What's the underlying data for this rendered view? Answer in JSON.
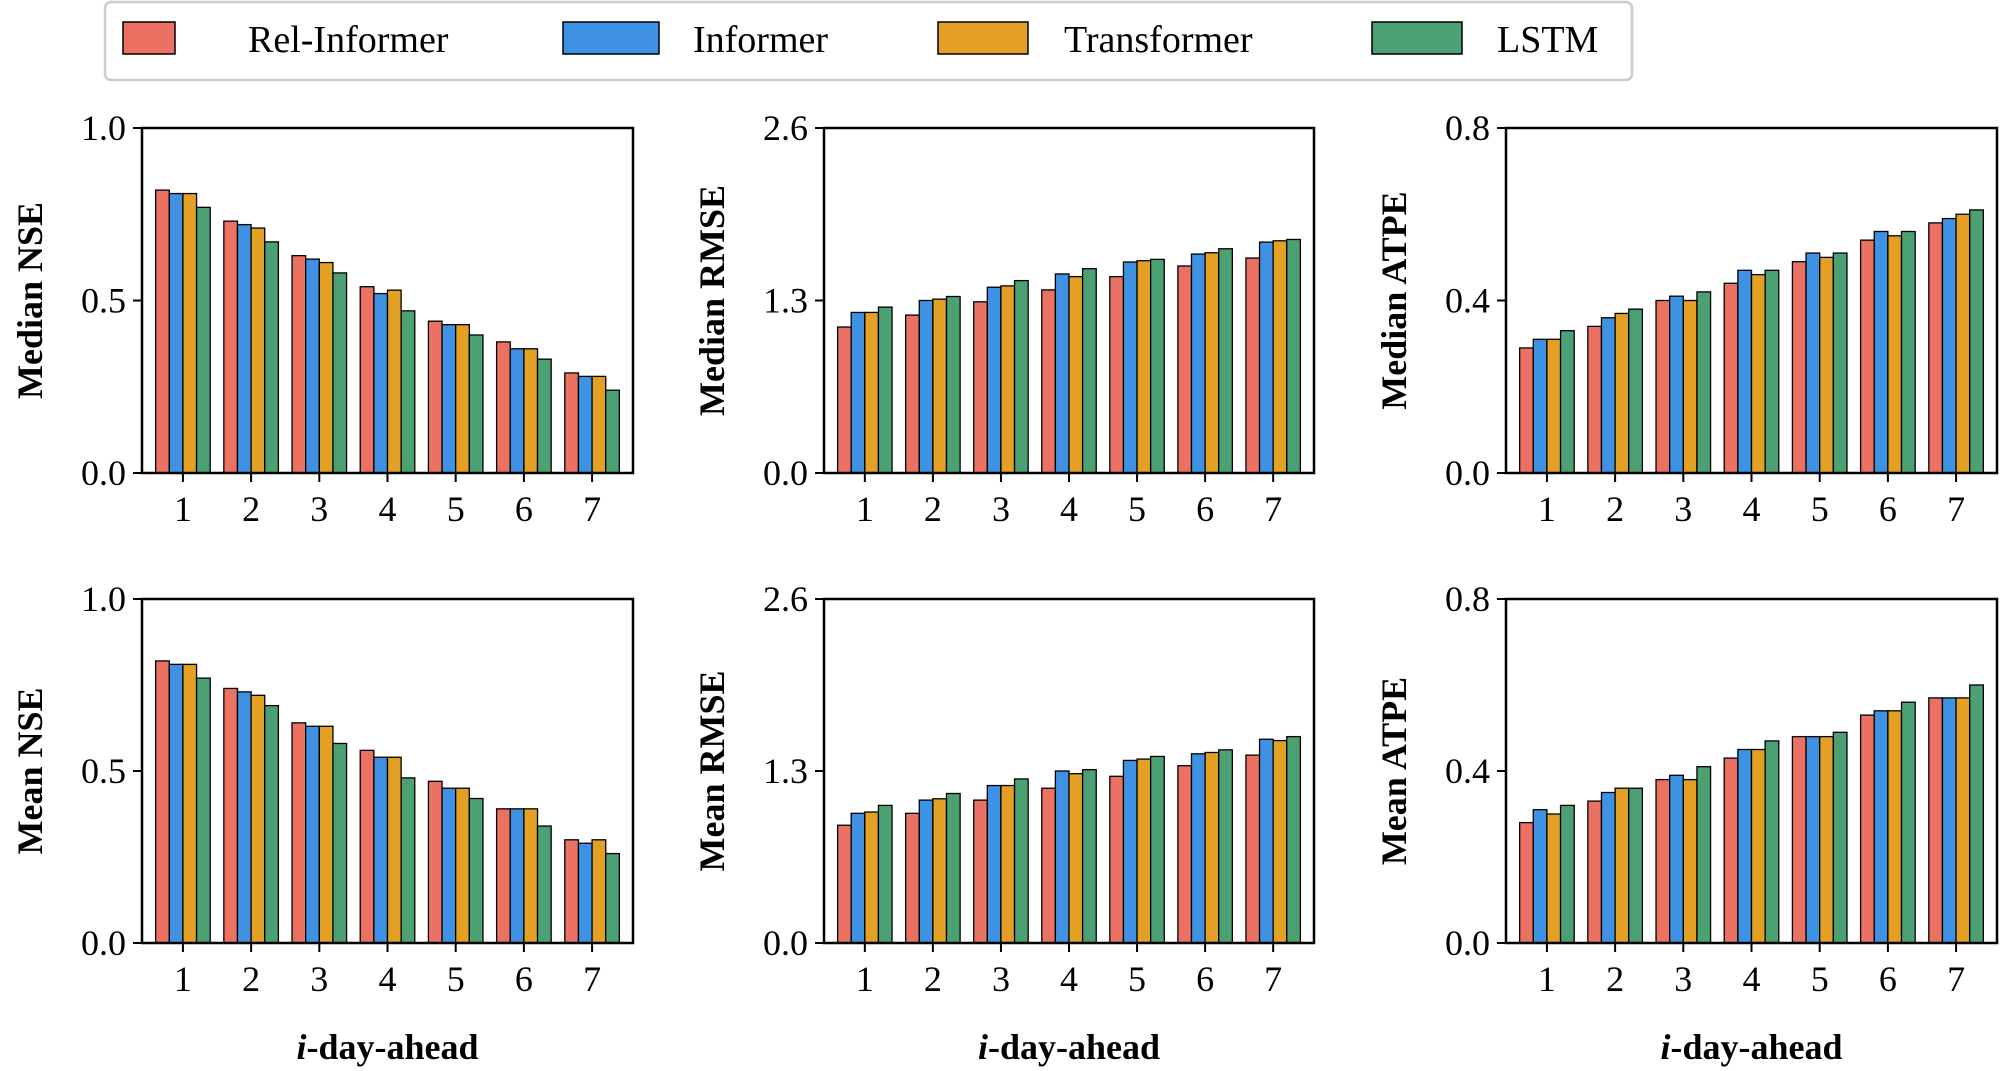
{
  "legend": {
    "entries": [
      {
        "name": "Rel-Informer",
        "color": "#EB7262"
      },
      {
        "name": "Informer",
        "color": "#3F92E3"
      },
      {
        "name": "Transformer",
        "color": "#E3A024"
      },
      {
        "name": "LSTM",
        "color": "#4BA172"
      }
    ]
  },
  "chart_data": [
    {
      "type": "bar",
      "ylabel": "Median NSE",
      "xlabel": "",
      "categories": [
        "1",
        "2",
        "3",
        "4",
        "5",
        "6",
        "7"
      ],
      "ylim": [
        0,
        1.0
      ],
      "yticks": [
        "0.0",
        "0.5",
        "1.0"
      ],
      "ytick_values": [
        0,
        0.5,
        1.0
      ],
      "series": [
        {
          "name": "Rel-Informer",
          "values": [
            0.82,
            0.73,
            0.63,
            0.54,
            0.44,
            0.38,
            0.29
          ]
        },
        {
          "name": "Informer",
          "values": [
            0.81,
            0.72,
            0.62,
            0.52,
            0.43,
            0.36,
            0.28
          ]
        },
        {
          "name": "Transformer",
          "values": [
            0.81,
            0.71,
            0.61,
            0.53,
            0.43,
            0.36,
            0.28
          ]
        },
        {
          "name": "LSTM",
          "values": [
            0.77,
            0.67,
            0.58,
            0.47,
            0.4,
            0.33,
            0.24
          ]
        }
      ]
    },
    {
      "type": "bar",
      "ylabel": "Median RMSE",
      "xlabel": "",
      "categories": [
        "1",
        "2",
        "3",
        "4",
        "5",
        "6",
        "7"
      ],
      "ylim": [
        0,
        2.6
      ],
      "yticks": [
        "0.0",
        "1.3",
        "2.6"
      ],
      "ytick_values": [
        0,
        1.3,
        2.6
      ],
      "series": [
        {
          "name": "Rel-Informer",
          "values": [
            1.1,
            1.19,
            1.29,
            1.38,
            1.48,
            1.56,
            1.62
          ]
        },
        {
          "name": "Informer",
          "values": [
            1.21,
            1.3,
            1.4,
            1.5,
            1.59,
            1.65,
            1.74
          ]
        },
        {
          "name": "Transformer",
          "values": [
            1.21,
            1.31,
            1.41,
            1.48,
            1.6,
            1.66,
            1.75
          ]
        },
        {
          "name": "LSTM",
          "values": [
            1.25,
            1.33,
            1.45,
            1.54,
            1.61,
            1.69,
            1.76
          ]
        }
      ]
    },
    {
      "type": "bar",
      "ylabel": "Median ATPE",
      "xlabel": "",
      "categories": [
        "1",
        "2",
        "3",
        "4",
        "5",
        "6",
        "7"
      ],
      "ylim": [
        0,
        0.8
      ],
      "yticks": [
        "0.0",
        "0.4",
        "0.8"
      ],
      "ytick_values": [
        0,
        0.4,
        0.8
      ],
      "series": [
        {
          "name": "Rel-Informer",
          "values": [
            0.29,
            0.34,
            0.4,
            0.44,
            0.49,
            0.54,
            0.58
          ]
        },
        {
          "name": "Informer",
          "values": [
            0.31,
            0.36,
            0.41,
            0.47,
            0.51,
            0.56,
            0.59
          ]
        },
        {
          "name": "Transformer",
          "values": [
            0.31,
            0.37,
            0.4,
            0.46,
            0.5,
            0.55,
            0.6
          ]
        },
        {
          "name": "LSTM",
          "values": [
            0.33,
            0.38,
            0.42,
            0.47,
            0.51,
            0.56,
            0.61
          ]
        }
      ]
    },
    {
      "type": "bar",
      "ylabel": "Mean NSE",
      "xlabel": "i-day-ahead",
      "categories": [
        "1",
        "2",
        "3",
        "4",
        "5",
        "6",
        "7"
      ],
      "ylim": [
        0,
        1.0
      ],
      "yticks": [
        "0.0",
        "0.5",
        "1.0"
      ],
      "ytick_values": [
        0,
        0.5,
        1.0
      ],
      "series": [
        {
          "name": "Rel-Informer",
          "values": [
            0.82,
            0.74,
            0.64,
            0.56,
            0.47,
            0.39,
            0.3
          ]
        },
        {
          "name": "Informer",
          "values": [
            0.81,
            0.73,
            0.63,
            0.54,
            0.45,
            0.39,
            0.29
          ]
        },
        {
          "name": "Transformer",
          "values": [
            0.81,
            0.72,
            0.63,
            0.54,
            0.45,
            0.39,
            0.3
          ]
        },
        {
          "name": "LSTM",
          "values": [
            0.77,
            0.69,
            0.58,
            0.48,
            0.42,
            0.34,
            0.26
          ]
        }
      ]
    },
    {
      "type": "bar",
      "ylabel": "Mean RMSE",
      "xlabel": "i-day-ahead",
      "categories": [
        "1",
        "2",
        "3",
        "4",
        "5",
        "6",
        "7"
      ],
      "ylim": [
        0,
        2.6
      ],
      "yticks": [
        "0.0",
        "1.3",
        "2.6"
      ],
      "ytick_values": [
        0,
        1.3,
        2.6
      ],
      "series": [
        {
          "name": "Rel-Informer",
          "values": [
            0.89,
            0.98,
            1.08,
            1.17,
            1.26,
            1.34,
            1.42
          ]
        },
        {
          "name": "Informer",
          "values": [
            0.98,
            1.08,
            1.19,
            1.3,
            1.38,
            1.43,
            1.54
          ]
        },
        {
          "name": "Transformer",
          "values": [
            0.99,
            1.09,
            1.19,
            1.28,
            1.39,
            1.44,
            1.53
          ]
        },
        {
          "name": "LSTM",
          "values": [
            1.04,
            1.13,
            1.24,
            1.31,
            1.41,
            1.46,
            1.56
          ]
        }
      ]
    },
    {
      "type": "bar",
      "ylabel": "Mean ATPE",
      "xlabel": "i-day-ahead",
      "categories": [
        "1",
        "2",
        "3",
        "4",
        "5",
        "6",
        "7"
      ],
      "ylim": [
        0,
        0.8
      ],
      "yticks": [
        "0.0",
        "0.4",
        "0.8"
      ],
      "ytick_values": [
        0,
        0.4,
        0.8
      ],
      "series": [
        {
          "name": "Rel-Informer",
          "values": [
            0.28,
            0.33,
            0.38,
            0.43,
            0.48,
            0.53,
            0.57
          ]
        },
        {
          "name": "Informer",
          "values": [
            0.31,
            0.35,
            0.39,
            0.45,
            0.48,
            0.54,
            0.57
          ]
        },
        {
          "name": "Transformer",
          "values": [
            0.3,
            0.36,
            0.38,
            0.45,
            0.48,
            0.54,
            0.57
          ]
        },
        {
          "name": "LSTM",
          "values": [
            0.32,
            0.36,
            0.41,
            0.47,
            0.49,
            0.56,
            0.6
          ]
        }
      ]
    }
  ]
}
